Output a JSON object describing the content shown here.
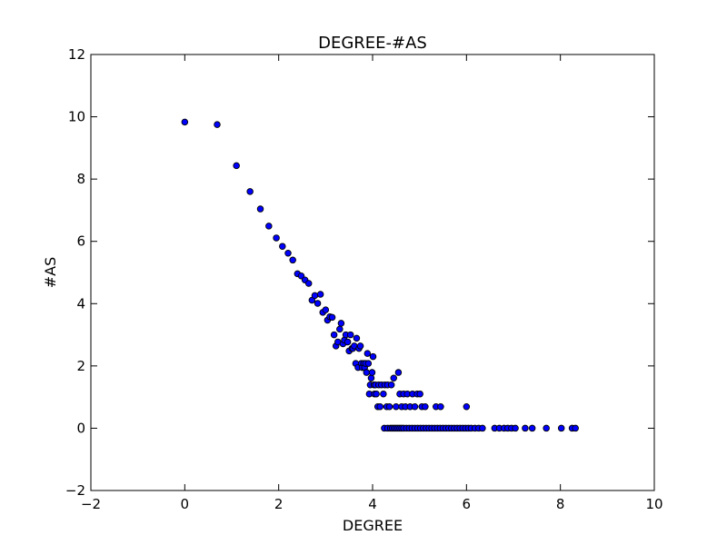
{
  "chart_data": {
    "type": "scatter",
    "title": "DEGREE-#AS",
    "xlabel": "DEGREE",
    "ylabel": "#AS",
    "xlim": [
      -2,
      10
    ],
    "ylim": [
      -2,
      12
    ],
    "xticks": [
      -2,
      0,
      2,
      4,
      6,
      8,
      10
    ],
    "yticks": [
      -2,
      0,
      2,
      4,
      6,
      8,
      10,
      12
    ],
    "xtick_labels": [
      "−2",
      "0",
      "2",
      "4",
      "6",
      "8",
      "10"
    ],
    "ytick_labels": [
      "−2",
      "0",
      "2",
      "4",
      "6",
      "8",
      "10",
      "12"
    ],
    "grid": false,
    "legend": "none",
    "marker_color": "#0000ff",
    "marker_edge_color": "#000000",
    "series": [
      {
        "points": [
          [
            0.0,
            9.83
          ],
          [
            0.69,
            9.75
          ],
          [
            1.1,
            8.43
          ],
          [
            1.39,
            7.6
          ],
          [
            1.61,
            7.04
          ],
          [
            1.79,
            6.49
          ],
          [
            1.95,
            6.11
          ],
          [
            2.08,
            5.84
          ],
          [
            2.2,
            5.62
          ],
          [
            2.3,
            5.4
          ],
          [
            2.4,
            4.96
          ],
          [
            2.48,
            4.89
          ],
          [
            2.56,
            4.76
          ],
          [
            2.64,
            4.65
          ],
          [
            2.71,
            4.11
          ],
          [
            2.77,
            4.26
          ],
          [
            2.83,
            4.01
          ],
          [
            2.89,
            4.3
          ],
          [
            2.94,
            3.72
          ],
          [
            3.0,
            3.8
          ],
          [
            3.04,
            3.47
          ],
          [
            3.09,
            3.58
          ],
          [
            3.14,
            3.56
          ],
          [
            3.18,
            3.0
          ],
          [
            3.22,
            2.64
          ],
          [
            3.26,
            2.77
          ],
          [
            3.3,
            3.18
          ],
          [
            3.33,
            3.37
          ],
          [
            3.37,
            2.71
          ],
          [
            3.4,
            2.83
          ],
          [
            3.43,
            3.0
          ],
          [
            3.47,
            2.77
          ],
          [
            3.5,
            2.48
          ],
          [
            3.53,
            3.0
          ],
          [
            3.56,
            2.56
          ],
          [
            3.58,
            2.56
          ],
          [
            3.61,
            2.64
          ],
          [
            3.64,
            2.08
          ],
          [
            3.66,
            2.89
          ],
          [
            3.69,
            1.95
          ],
          [
            3.71,
            2.56
          ],
          [
            3.74,
            2.64
          ],
          [
            3.76,
            2.08
          ],
          [
            3.78,
            1.95
          ],
          [
            3.81,
            2.08
          ],
          [
            3.83,
            1.95
          ],
          [
            3.85,
            2.08
          ],
          [
            3.87,
            1.79
          ],
          [
            3.89,
            2.4
          ],
          [
            3.91,
            2.08
          ],
          [
            3.93,
            1.1
          ],
          [
            3.95,
            1.39
          ],
          [
            3.97,
            1.61
          ],
          [
            3.99,
            1.79
          ],
          [
            4.01,
            2.3
          ],
          [
            4.03,
            1.39
          ],
          [
            4.04,
            1.1
          ],
          [
            4.06,
            1.39
          ],
          [
            4.08,
            1.1
          ],
          [
            4.11,
            0.69
          ],
          [
            4.13,
            1.39
          ],
          [
            4.16,
            0.69
          ],
          [
            4.19,
            1.39
          ],
          [
            4.23,
            1.1
          ],
          [
            4.26,
            1.39
          ],
          [
            4.3,
            0.69
          ],
          [
            4.32,
            1.39
          ],
          [
            4.36,
            0.69
          ],
          [
            4.4,
            1.39
          ],
          [
            4.45,
            1.61
          ],
          [
            4.5,
            0.69
          ],
          [
            4.55,
            1.79
          ],
          [
            4.58,
            1.1
          ],
          [
            4.62,
            0.69
          ],
          [
            4.66,
            1.1
          ],
          [
            4.7,
            0.69
          ],
          [
            4.74,
            1.1
          ],
          [
            4.8,
            0.69
          ],
          [
            4.85,
            1.1
          ],
          [
            4.9,
            0.69
          ],
          [
            4.95,
            1.1
          ],
          [
            5.01,
            1.1
          ],
          [
            5.05,
            0.69
          ],
          [
            5.12,
            0.69
          ],
          [
            5.35,
            0.69
          ],
          [
            5.45,
            0.69
          ],
          [
            6.0,
            0.69
          ],
          [
            4.25,
            0.0
          ],
          [
            4.32,
            0.0
          ],
          [
            4.38,
            0.0
          ],
          [
            4.42,
            0.0
          ],
          [
            4.46,
            0.0
          ],
          [
            4.5,
            0.0
          ],
          [
            4.54,
            0.0
          ],
          [
            4.58,
            0.0
          ],
          [
            4.62,
            0.0
          ],
          [
            4.66,
            0.0
          ],
          [
            4.72,
            0.0
          ],
          [
            4.78,
            0.0
          ],
          [
            4.84,
            0.0
          ],
          [
            4.9,
            0.0
          ],
          [
            4.96,
            0.0
          ],
          [
            5.02,
            0.0
          ],
          [
            5.08,
            0.0
          ],
          [
            5.14,
            0.0
          ],
          [
            5.2,
            0.0
          ],
          [
            5.26,
            0.0
          ],
          [
            5.32,
            0.0
          ],
          [
            5.38,
            0.0
          ],
          [
            5.44,
            0.0
          ],
          [
            5.5,
            0.0
          ],
          [
            5.56,
            0.0
          ],
          [
            5.62,
            0.0
          ],
          [
            5.68,
            0.0
          ],
          [
            5.74,
            0.0
          ],
          [
            5.8,
            0.0
          ],
          [
            5.86,
            0.0
          ],
          [
            5.92,
            0.0
          ],
          [
            5.98,
            0.0
          ],
          [
            6.04,
            0.0
          ],
          [
            6.1,
            0.0
          ],
          [
            6.18,
            0.0
          ],
          [
            6.26,
            0.0
          ],
          [
            6.34,
            0.0
          ],
          [
            6.6,
            0.0
          ],
          [
            6.7,
            0.0
          ],
          [
            6.8,
            0.0
          ],
          [
            6.88,
            0.0
          ],
          [
            6.96,
            0.0
          ],
          [
            7.04,
            0.0
          ],
          [
            7.25,
            0.0
          ],
          [
            7.4,
            0.0
          ],
          [
            7.7,
            0.0
          ],
          [
            8.02,
            0.0
          ],
          [
            8.25,
            0.0
          ],
          [
            8.32,
            0.0
          ]
        ]
      }
    ]
  }
}
